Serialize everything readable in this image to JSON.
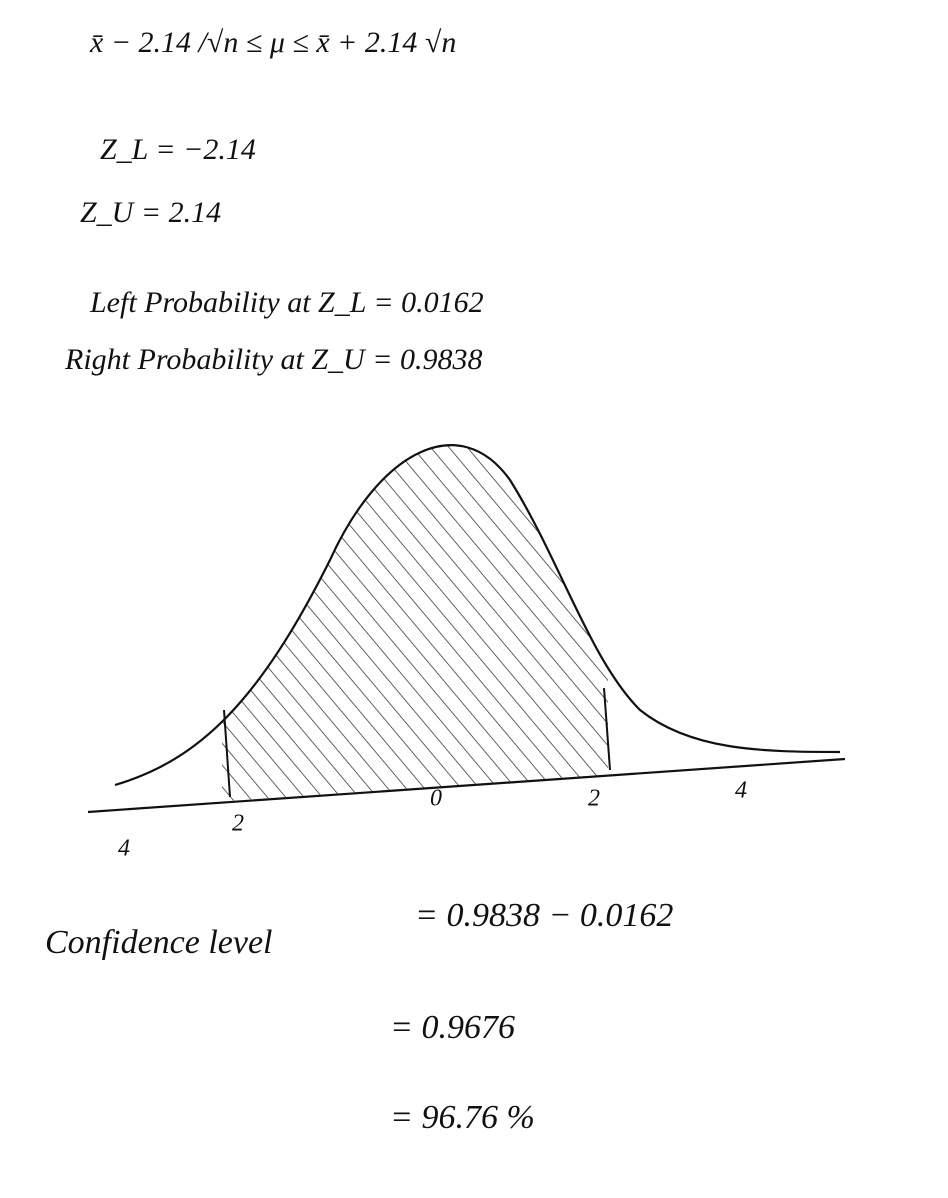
{
  "lines": [
    "x̄ − 2.14 /√n ≤ μ ≤ x̄ + 2.14 √n",
    "Z_L = −2.14",
    "Z_U = 2.14",
    "Left Probability at Z_L = 0.0162",
    "Right Probability at Z_U = 0.9838"
  ],
  "sketch": {
    "axis_labels": [
      "4",
      "2",
      "0",
      "2",
      "4"
    ]
  },
  "confidence": {
    "label": "Confidence level",
    "steps": [
      "= 0.9838 − 0.0162",
      "= 0.9676",
      "= 96.76 %"
    ]
  }
}
